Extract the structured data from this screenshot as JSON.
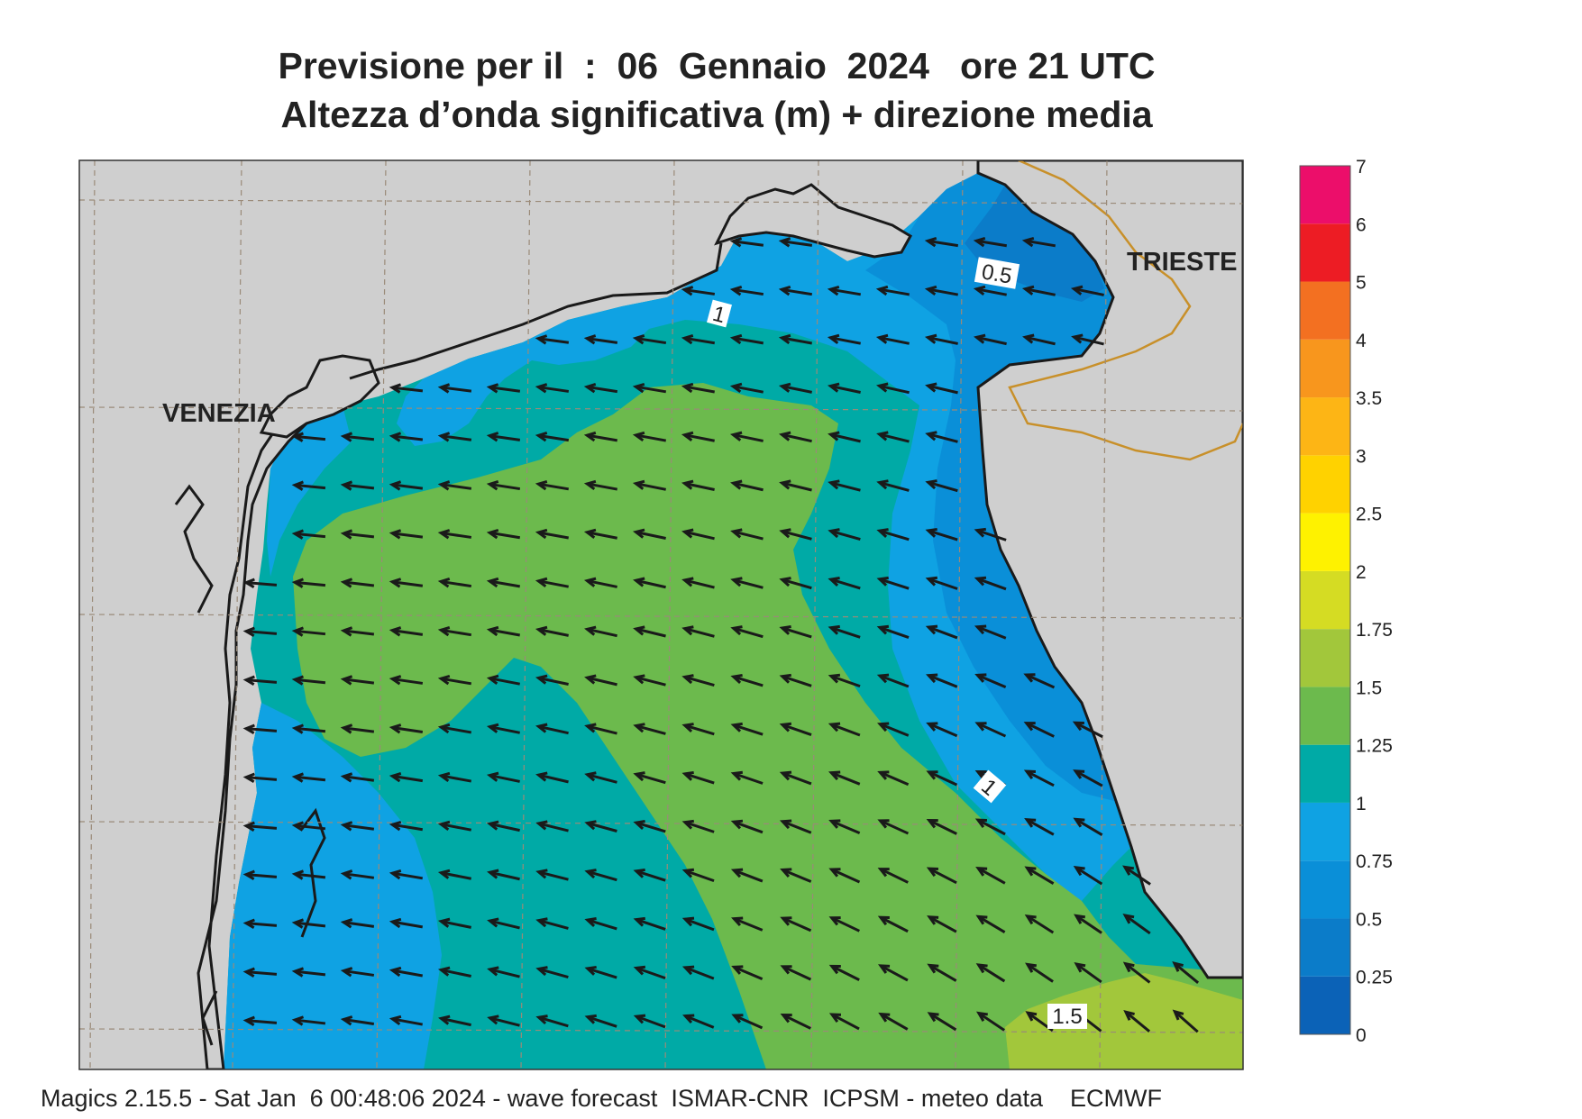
{
  "title_line1": "Previsione per il  :  06  Gennaio  2024   ore 21 UTC",
  "title_line2": "Altezza d’onda significativa (m) + direzione media",
  "footer": "Magics 2.15.5 - Sat Jan  6 00:48:06 2024 - wave forecast  ISMAR-CNR  ICPSM - meteo data    ECMWF",
  "places": {
    "venezia": "VENEZIA",
    "trieste": "TRIESTE"
  },
  "contour_labels": [
    "0.5",
    "1",
    "1",
    "1.5"
  ],
  "legend": {
    "levels": [
      "0",
      "0.25",
      "0.5",
      "0.75",
      "1",
      "1.25",
      "1.5",
      "1.75",
      "2",
      "2.5",
      "3",
      "3.5",
      "4",
      "5",
      "6",
      "7"
    ],
    "colors": [
      "#0b62b7",
      "#0b7cc9",
      "#0a8fd8",
      "#0fa2e3",
      "#00aaa6",
      "#6cba4d",
      "#a2c73b",
      "#d5dc23",
      "#fef200",
      "#ffd200",
      "#fdb515",
      "#f8961d",
      "#f37021",
      "#ed1c24",
      "#ec0e6a"
    ]
  },
  "colors": {
    "land": "#cfcfcf",
    "coast": "#1a1a1a",
    "border": "#c8902a",
    "grid": "#9a8a78",
    "arrow": "#1a1a1a"
  },
  "wave_direction": "NW (toward)"
}
